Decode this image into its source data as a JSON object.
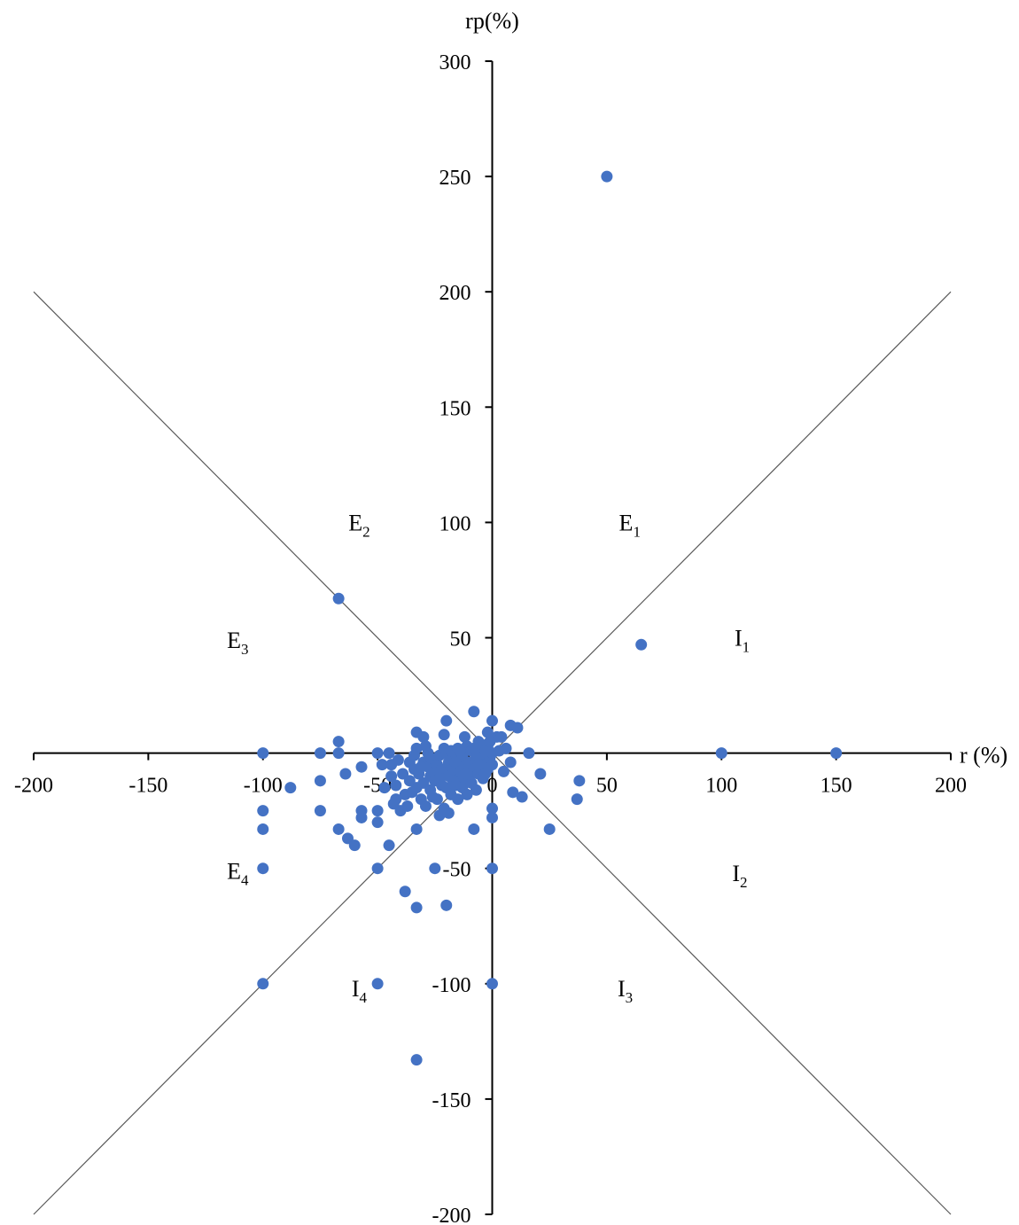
{
  "chart_data": {
    "type": "scatter",
    "xlabel": "r (%)",
    "ylabel": "rp(%)",
    "xlim": [
      -200,
      200
    ],
    "ylim": [
      -200,
      300
    ],
    "x_ticks": [
      -200,
      -150,
      -100,
      -50,
      0,
      50,
      100,
      150,
      200
    ],
    "y_ticks": [
      -200,
      -150,
      -100,
      -50,
      0,
      50,
      100,
      150,
      200,
      250,
      300
    ],
    "grid": false,
    "diagonals": [
      {
        "from": [
          -200,
          200
        ],
        "to": [
          200,
          -200
        ]
      },
      {
        "from": [
          -200,
          -200
        ],
        "to": [
          200,
          200
        ]
      }
    ],
    "zones": [
      {
        "main": "E",
        "sub": "1",
        "x": 60,
        "y": 100
      },
      {
        "main": "E",
        "sub": "2",
        "x": -58,
        "y": 100
      },
      {
        "main": "E",
        "sub": "3",
        "x": -111,
        "y": 49
      },
      {
        "main": "E",
        "sub": "4",
        "x": -111,
        "y": -51
      },
      {
        "main": "I",
        "sub": "1",
        "x": 109,
        "y": 50
      },
      {
        "main": "I",
        "sub": "2",
        "x": 108,
        "y": -52
      },
      {
        "main": "I",
        "sub": "3",
        "x": 58,
        "y": -102
      },
      {
        "main": "I",
        "sub": "4",
        "x": -58,
        "y": -102
      }
    ],
    "series": [
      {
        "color": "#4472C4",
        "points": [
          [
            50,
            250
          ],
          [
            -67,
            67
          ],
          [
            65,
            47
          ],
          [
            100,
            0
          ],
          [
            150,
            0
          ],
          [
            -100,
            0
          ],
          [
            -100,
            -25
          ],
          [
            -100,
            -33
          ],
          [
            -100,
            -50
          ],
          [
            -100,
            -100
          ],
          [
            -88,
            -15
          ],
          [
            -75,
            0
          ],
          [
            -75,
            -12
          ],
          [
            -75,
            -25
          ],
          [
            -67,
            5
          ],
          [
            -67,
            0
          ],
          [
            -67,
            -33
          ],
          [
            -63,
            -37
          ],
          [
            -64,
            -9
          ],
          [
            -60,
            -40
          ],
          [
            -57,
            -6
          ],
          [
            -57,
            -25
          ],
          [
            -57,
            -28
          ],
          [
            -50,
            0
          ],
          [
            -50,
            -25
          ],
          [
            -50,
            -30
          ],
          [
            -50,
            -50
          ],
          [
            -50,
            -100
          ],
          [
            -45,
            -40
          ],
          [
            -42,
            -20
          ],
          [
            -40,
            -25
          ],
          [
            -38,
            -60
          ],
          [
            -33,
            -33
          ],
          [
            -33,
            -67
          ],
          [
            -33,
            -133
          ],
          [
            -33,
            9
          ],
          [
            -33,
            -15
          ],
          [
            -30,
            7
          ],
          [
            -28,
            0
          ],
          [
            -27,
            -10
          ],
          [
            -25,
            -50
          ],
          [
            -23,
            -27
          ],
          [
            -21,
            8
          ],
          [
            -20,
            14
          ],
          [
            -20,
            -15
          ],
          [
            -20,
            -8
          ],
          [
            -18,
            -5
          ],
          [
            -16,
            -2
          ],
          [
            -15,
            -10
          ],
          [
            -14,
            -3
          ],
          [
            -12,
            -12
          ],
          [
            -20,
            -66
          ],
          [
            -8,
            18
          ],
          [
            -8,
            -33
          ],
          [
            -12,
            7
          ],
          [
            -10,
            2
          ],
          [
            -6,
            5
          ],
          [
            -5,
            -1
          ],
          [
            -4,
            0
          ],
          [
            -3,
            -5
          ],
          [
            -2,
            3
          ],
          [
            -1,
            -2
          ],
          [
            0,
            14
          ],
          [
            0,
            0
          ],
          [
            0,
            -5
          ],
          [
            0,
            -24
          ],
          [
            0,
            -28
          ],
          [
            0,
            -50
          ],
          [
            0,
            -100
          ],
          [
            2,
            7
          ],
          [
            4,
            7
          ],
          [
            5,
            -8
          ],
          [
            8,
            -4
          ],
          [
            8,
            12
          ],
          [
            9,
            -17
          ],
          [
            11,
            11
          ],
          [
            13,
            -19
          ],
          [
            16,
            0
          ],
          [
            21,
            -9
          ],
          [
            25,
            -33
          ],
          [
            37,
            -20
          ],
          [
            38,
            -12
          ],
          [
            -48,
            -5
          ],
          [
            -47,
            -15
          ],
          [
            -45,
            0
          ],
          [
            -44,
            -5
          ],
          [
            -43,
            -22
          ],
          [
            -42,
            -14
          ],
          [
            -38,
            -18
          ],
          [
            -37,
            -23
          ],
          [
            -36,
            -4
          ],
          [
            -35,
            -17
          ],
          [
            -34,
            -7
          ],
          [
            -33,
            2
          ],
          [
            -32,
            -9
          ],
          [
            -31,
            -20
          ],
          [
            -30,
            -4
          ],
          [
            -30,
            -13
          ],
          [
            -29,
            -23
          ],
          [
            -28,
            -6
          ],
          [
            -27,
            -2
          ],
          [
            -27,
            -16
          ],
          [
            -26,
            -8
          ],
          [
            -25,
            -3
          ],
          [
            -25,
            -12
          ],
          [
            -24,
            -20
          ],
          [
            -24,
            -5
          ],
          [
            -23,
            -1
          ],
          [
            -22,
            -14
          ],
          [
            -22,
            -7
          ],
          [
            -21,
            -24
          ],
          [
            -20,
            0
          ],
          [
            -19,
            -10
          ],
          [
            -19,
            -4
          ],
          [
            -18,
            -18
          ],
          [
            -18,
            1
          ],
          [
            -17,
            -12
          ],
          [
            -17,
            -7
          ],
          [
            -16,
            -4
          ],
          [
            -15,
            -20
          ],
          [
            -15,
            2
          ],
          [
            -14,
            -8
          ],
          [
            -13,
            -15
          ],
          [
            -13,
            -1
          ],
          [
            -12,
            -6
          ],
          [
            -11,
            -18
          ],
          [
            -11,
            3
          ],
          [
            -10,
            -10
          ],
          [
            -10,
            -4
          ],
          [
            -9,
            -13
          ],
          [
            -9,
            1
          ],
          [
            -8,
            -7
          ],
          [
            -7,
            -2
          ],
          [
            -7,
            -16
          ],
          [
            -6,
            -9
          ],
          [
            -5,
            4
          ],
          [
            -4,
            -11
          ],
          [
            -3,
            1
          ],
          [
            -2,
            -7
          ],
          [
            -1,
            5
          ],
          [
            -44,
            -10
          ],
          [
            -41,
            -3
          ],
          [
            -39,
            -9
          ],
          [
            -36,
            -12
          ],
          [
            -34,
            -1
          ],
          [
            -31,
            -6
          ],
          [
            -29,
            3
          ],
          [
            -26,
            -19
          ],
          [
            -23,
            -11
          ],
          [
            -21,
            2
          ],
          [
            -19,
            -26
          ],
          [
            -16,
            -14
          ],
          [
            -14,
            1
          ],
          [
            -11,
            -9
          ],
          [
            -8,
            2
          ],
          [
            -6,
            -5
          ],
          [
            -3,
            -9
          ],
          [
            -2,
            9
          ],
          [
            3,
            1
          ],
          [
            6,
            2
          ]
        ]
      }
    ]
  }
}
